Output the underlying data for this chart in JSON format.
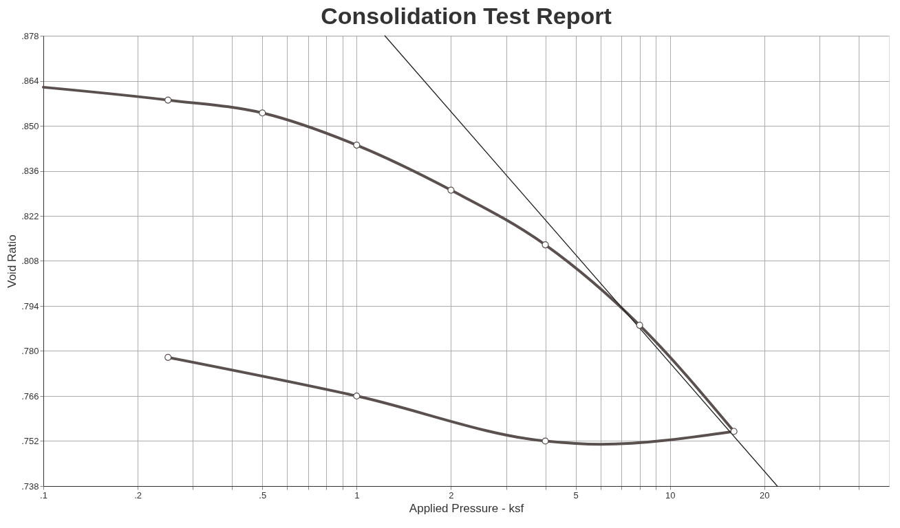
{
  "chart_data": {
    "type": "line",
    "title": "Consolidation Test Report",
    "xlabel": "Applied Pressure - ksf",
    "ylabel": "Void Ratio",
    "log": "x",
    "grid": true,
    "line_style": "solid",
    "xlim": [
      0.1,
      50
    ],
    "ylim": [
      0.738,
      0.878
    ],
    "xticks": [
      {
        "value": 0.1,
        "label": ".1"
      },
      {
        "value": 0.2,
        "label": ".2"
      },
      {
        "value": 0.3,
        "label": null
      },
      {
        "value": 0.4,
        "label": null
      },
      {
        "value": 0.5,
        "label": ".5"
      },
      {
        "value": 0.6,
        "label": null
      },
      {
        "value": 0.7,
        "label": null
      },
      {
        "value": 0.8,
        "label": null
      },
      {
        "value": 0.9,
        "label": null
      },
      1,
      2,
      {
        "value": 3,
        "label": null
      },
      {
        "value": 4,
        "label": null
      },
      5,
      {
        "value": 6,
        "label": null
      },
      {
        "value": 7,
        "label": null
      },
      {
        "value": 8,
        "label": null
      },
      {
        "value": 9,
        "label": null
      },
      10,
      20,
      {
        "value": 30,
        "label": null
      },
      {
        "value": 40,
        "label": null
      }
    ],
    "yticks": [
      {
        "value": 0.738,
        "label": ".738"
      },
      {
        "value": 0.752,
        "label": ".752"
      },
      {
        "value": 0.766,
        "label": ".766"
      },
      {
        "value": 0.78,
        "label": ".780"
      },
      {
        "value": 0.794,
        "label": ".794"
      },
      {
        "value": 0.808,
        "label": ".808"
      },
      {
        "value": 0.822,
        "label": ".822"
      },
      {
        "value": 0.836,
        "label": ".836"
      },
      {
        "value": 0.85,
        "label": ".850"
      },
      {
        "value": 0.864,
        "label": ".864"
      },
      {
        "value": 0.878,
        "label": ".878"
      }
    ],
    "series": [
      {
        "marker": "none",
        "color": "#5a5050",
        "x": [
          0.1,
          0.25,
          0.5,
          1,
          2,
          4,
          8,
          16
        ],
        "values": [
          0.862,
          0.858,
          0.854,
          0.844,
          0.83,
          0.813,
          0.788,
          0.755
        ]
      },
      {
        "marker": "none",
        "color": "#5a5050",
        "x": [
          0.25,
          1,
          4,
          6,
          16
        ],
        "values": [
          0.778,
          0.766,
          0.752,
          0.751,
          0.755
        ]
      },
      {
        "marker": "none",
        "color": "#222222",
        "x": [
          1.23,
          22
        ],
        "values": [
          0.878,
          0.738
        ]
      },
      {
        "type": "scatter",
        "marker": "circle",
        "color": "#5a5050",
        "x": [
          0.25,
          0.5,
          1,
          2,
          4,
          8,
          16,
          4,
          1,
          0.25
        ],
        "values": [
          0.858,
          0.854,
          0.844,
          0.83,
          0.813,
          0.788,
          0.755,
          0.752,
          0.766,
          0.778
        ]
      }
    ]
  }
}
